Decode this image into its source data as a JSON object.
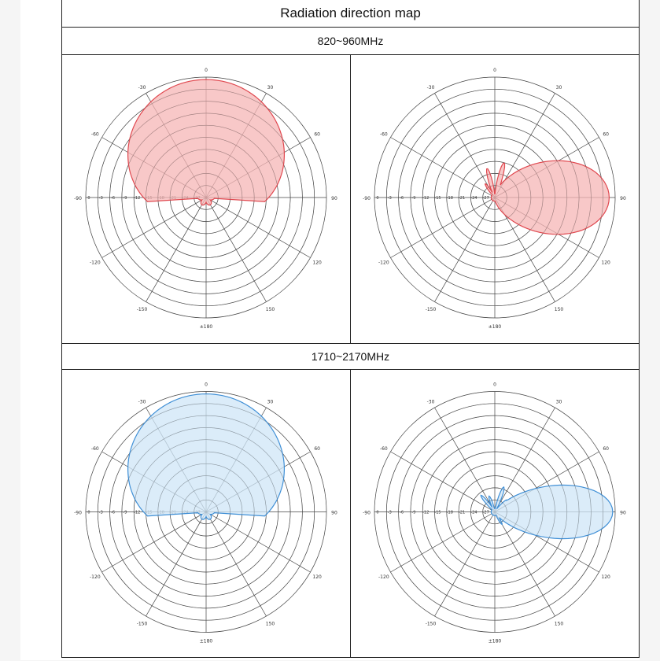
{
  "title": "Radiation direction map",
  "bands": [
    {
      "label": "820~960MHz",
      "fill": "#f5b6b6",
      "stroke": "#e0484f",
      "charts": [
        {
          "type": "polar",
          "plane": "left",
          "r_at_0": 0.95,
          "shape": "cardioid-up"
        },
        {
          "type": "polar",
          "plane": "right",
          "r_at_90": 0.95,
          "shape": "beam-right"
        }
      ]
    },
    {
      "label": "1710~2170MHz",
      "fill": "#cfe6f7",
      "stroke": "#3f8fd6",
      "charts": [
        {
          "type": "polar",
          "plane": "left",
          "r_at_0": 0.95,
          "shape": "cardioid-up"
        },
        {
          "type": "polar",
          "plane": "right",
          "r_at_90": 0.98,
          "shape": "beam-right-narrow"
        }
      ]
    }
  ],
  "chart_data": [
    {
      "type": "polar",
      "band": "820~960MHz",
      "plane": "left",
      "angle_labels": [
        "0",
        "30",
        "60",
        "90",
        "120",
        "150",
        "±180",
        "-150",
        "-120",
        "-90",
        "-60",
        "-30"
      ],
      "radial_ticks": [
        "0",
        "-3",
        "-6",
        "-9",
        "-12",
        "-15",
        "-18",
        "-21",
        "-24",
        "-27"
      ]
    },
    {
      "type": "polar",
      "band": "820~960MHz",
      "plane": "right",
      "angle_labels": [
        "0",
        "30",
        "60",
        "90",
        "120",
        "150",
        "±180",
        "-150",
        "-120",
        "-90",
        "-60",
        "-30"
      ],
      "radial_ticks": [
        "0",
        "-3",
        "-6",
        "-9",
        "-12",
        "-15",
        "-18",
        "-21",
        "-24",
        "-27"
      ]
    },
    {
      "type": "polar",
      "band": "1710~2170MHz",
      "plane": "left",
      "angle_labels": [
        "0",
        "30",
        "60",
        "90",
        "120",
        "150",
        "±180",
        "-150",
        "-120",
        "-90",
        "-60",
        "-30"
      ],
      "radial_ticks": [
        "0",
        "-3",
        "-6",
        "-9",
        "-12",
        "-15",
        "-18",
        "-21",
        "-24",
        "-27"
      ]
    },
    {
      "type": "polar",
      "band": "1710~2170MHz",
      "plane": "right",
      "angle_labels": [
        "0",
        "30",
        "60",
        "90",
        "120",
        "150",
        "±180",
        "-150",
        "-120",
        "-90",
        "-60",
        "-30"
      ],
      "radial_ticks": [
        "0",
        "-3",
        "-6",
        "-9",
        "-12",
        "-15",
        "-18",
        "-21",
        "-24",
        "-27"
      ]
    }
  ]
}
